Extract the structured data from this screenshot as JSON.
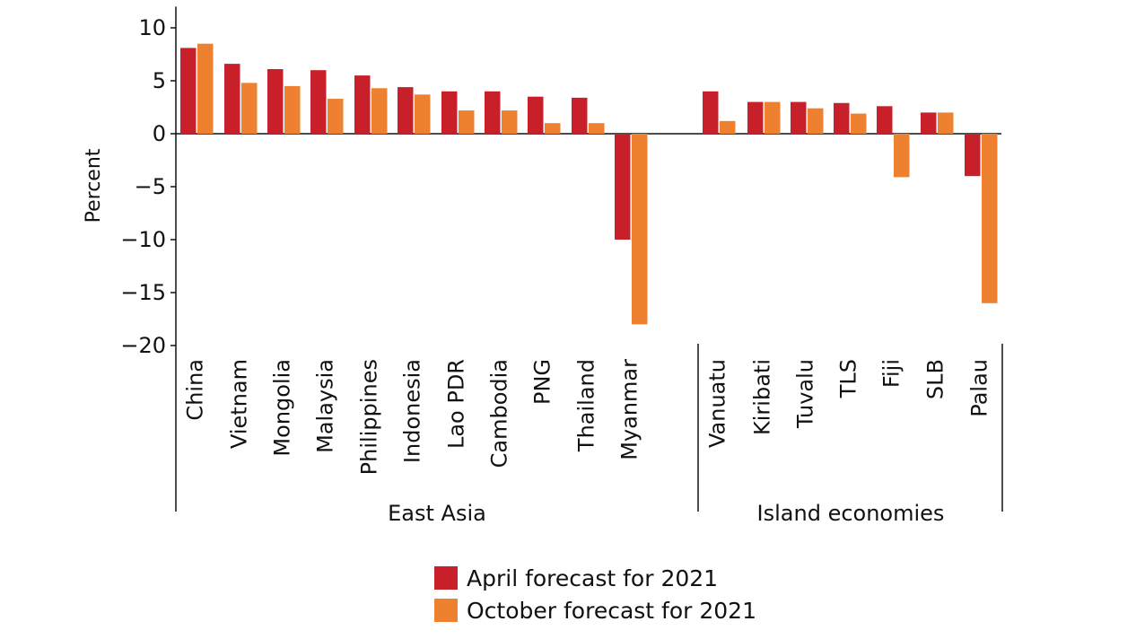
{
  "chart_data": {
    "type": "bar",
    "ylabel": "Percent",
    "ylim": [
      -20,
      12
    ],
    "yticks": [
      10,
      5,
      0,
      -5,
      -10,
      -15,
      -20
    ],
    "ytick_labels": [
      "10",
      "5",
      "0",
      "−5",
      "−10",
      "−15",
      "−20"
    ],
    "groups": [
      {
        "name": "East Asia",
        "categories": [
          "China",
          "Vietnam",
          "Mongolia",
          "Malaysia",
          "Philippines",
          "Indonesia",
          "Lao PDR",
          "Cambodia",
          "PNG",
          "Thailand",
          "Myanmar"
        ]
      },
      {
        "name": "Island economies",
        "categories": [
          "Vanuatu",
          "Kiribati",
          "Tuvalu",
          "TLS",
          "Fiji",
          "SLB",
          "Palau"
        ]
      }
    ],
    "categories": [
      "China",
      "Vietnam",
      "Mongolia",
      "Malaysia",
      "Philippines",
      "Indonesia",
      "Lao PDR",
      "Cambodia",
      "PNG",
      "Thailand",
      "Myanmar",
      "Vanuatu",
      "Kiribati",
      "Tuvalu",
      "TLS",
      "Fiji",
      "SLB",
      "Palau"
    ],
    "series": [
      {
        "name": "April forecast for 2021",
        "color": "#c8202a",
        "values": [
          8.1,
          6.6,
          6.1,
          6.0,
          5.5,
          4.4,
          4.0,
          4.0,
          3.5,
          3.4,
          -10.0,
          4.0,
          3.0,
          3.0,
          2.9,
          2.6,
          2.0,
          -4.0
        ]
      },
      {
        "name": "October forecast for 2021",
        "color": "#ee8130",
        "values": [
          8.5,
          4.8,
          4.5,
          3.3,
          4.3,
          3.7,
          2.2,
          2.2,
          1.0,
          1.0,
          -18.0,
          1.2,
          3.0,
          2.4,
          1.9,
          -4.1,
          2.0,
          -16.0
        ]
      }
    ]
  }
}
